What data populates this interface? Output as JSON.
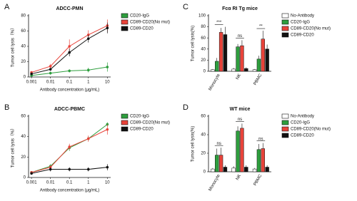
{
  "chart_data": [
    {
      "type": "line",
      "panel": "A",
      "title": "ADCC-PMN",
      "x_label": "Antibody concentration (μg/mL)",
      "y_label": "Tumor cell lysis（%）",
      "x": [
        0.001,
        0.01,
        0.1,
        1,
        10
      ],
      "xlim": [
        0.0007,
        15
      ],
      "xticks": [
        0.001,
        0.01,
        0.1,
        1,
        10
      ],
      "log_x": true,
      "ylim": [
        0,
        80
      ],
      "yticks": [
        0,
        20,
        40,
        60,
        80
      ],
      "series": [
        {
          "name": "CD20-IgG",
          "color": "#2e9e3e",
          "values": [
            2,
            5,
            8,
            9,
            13
          ],
          "errors": [
            1,
            2,
            2,
            3,
            6
          ]
        },
        {
          "name": "CD89-CD20(No mut)",
          "color": "#e8433a",
          "values": [
            6,
            14,
            40,
            55,
            67
          ],
          "errors": [
            1,
            3,
            9,
            6,
            8
          ]
        },
        {
          "name": "CD89-CD20",
          "color": "#111111",
          "values": [
            4,
            10,
            32,
            50,
            64
          ],
          "errors": [
            1,
            2,
            5,
            5,
            7
          ]
        }
      ]
    },
    {
      "type": "line",
      "panel": "B",
      "title": "ADCC-PBMC",
      "x_label": "Antibody concentration (μg/mL)",
      "y_label": "Tumor cell lysis（%）",
      "x": [
        0.001,
        0.01,
        0.1,
        1,
        10
      ],
      "xlim": [
        0.0007,
        15
      ],
      "xticks": [
        0.001,
        0.01,
        0.1,
        1,
        10
      ],
      "log_x": true,
      "ylim": [
        0,
        60
      ],
      "yticks": [
        0,
        20,
        40,
        60
      ],
      "series": [
        {
          "name": "CD20-IgG",
          "color": "#2e9e3e",
          "values": [
            5,
            11,
            29,
            38,
            52
          ],
          "errors": [
            1,
            2,
            3,
            2,
            2
          ]
        },
        {
          "name": "CD89-CD20(No mut)",
          "color": "#e8433a",
          "values": [
            5,
            10,
            30,
            38,
            47
          ],
          "errors": [
            1,
            2,
            3,
            3,
            5
          ]
        },
        {
          "name": "CD89-CD20",
          "color": "#111111",
          "values": [
            4,
            8,
            8,
            8,
            10
          ],
          "errors": [
            1,
            2,
            2,
            2,
            3
          ]
        }
      ]
    },
    {
      "type": "bar",
      "panel": "C",
      "title": "Fcα RI Tg mice",
      "y_label": "Tumor cell lysis(%)",
      "categories": [
        "Monocyte",
        "NK",
        "PBMC"
      ],
      "ylim": [
        0,
        100
      ],
      "yticks": [
        0,
        20,
        40,
        60,
        80,
        100
      ],
      "series": [
        {
          "name": "No-Antibody",
          "color": "#ffffff",
          "values": [
            3,
            4,
            3
          ],
          "errors": [
            1,
            2,
            1
          ]
        },
        {
          "name": "CD20-IgG",
          "color": "#2e9e3e",
          "values": [
            18,
            44,
            22
          ],
          "errors": [
            6,
            5,
            6
          ]
        },
        {
          "name": "CD89-CD20(No mut)",
          "color": "#e8433a",
          "values": [
            70,
            46,
            58
          ],
          "errors": [
            8,
            10,
            15
          ]
        },
        {
          "name": "CD89-CD20",
          "color": "#111111",
          "values": [
            66,
            5,
            40
          ],
          "errors": [
            14,
            2,
            8
          ]
        }
      ],
      "annotations": [
        {
          "text": "***",
          "x": "Monocyte"
        },
        {
          "text": "ns",
          "x": "NK"
        },
        {
          "text": "**",
          "x": "PBMC"
        }
      ]
    },
    {
      "type": "bar",
      "panel": "D",
      "title": "WT mice",
      "y_label": "Tumor cell lysis(%)",
      "categories": [
        "Monocyte",
        "NK",
        "PBMC"
      ],
      "ylim": [
        0,
        60
      ],
      "yticks": [
        0,
        20,
        40,
        60
      ],
      "series": [
        {
          "name": "No-Antibody",
          "color": "#ffffff",
          "values": [
            3,
            4,
            3
          ],
          "errors": [
            1,
            2,
            1
          ]
        },
        {
          "name": "CD20-IgG",
          "color": "#2e9e3e",
          "values": [
            18,
            44,
            24
          ],
          "errors": [
            7,
            5,
            6
          ]
        },
        {
          "name": "CD89-CD20(No mut)",
          "color": "#e8433a",
          "values": [
            18,
            47,
            25
          ],
          "errors": [
            8,
            5,
            6
          ]
        },
        {
          "name": "CD89-CD20",
          "color": "#111111",
          "values": [
            5,
            5,
            5
          ],
          "errors": [
            2,
            2,
            2
          ]
        }
      ],
      "annotations": [
        {
          "text": "ns",
          "x": "Monocyte"
        },
        {
          "text": "ns",
          "x": "NK"
        },
        {
          "text": "ns",
          "x": "PBMC"
        }
      ]
    }
  ]
}
